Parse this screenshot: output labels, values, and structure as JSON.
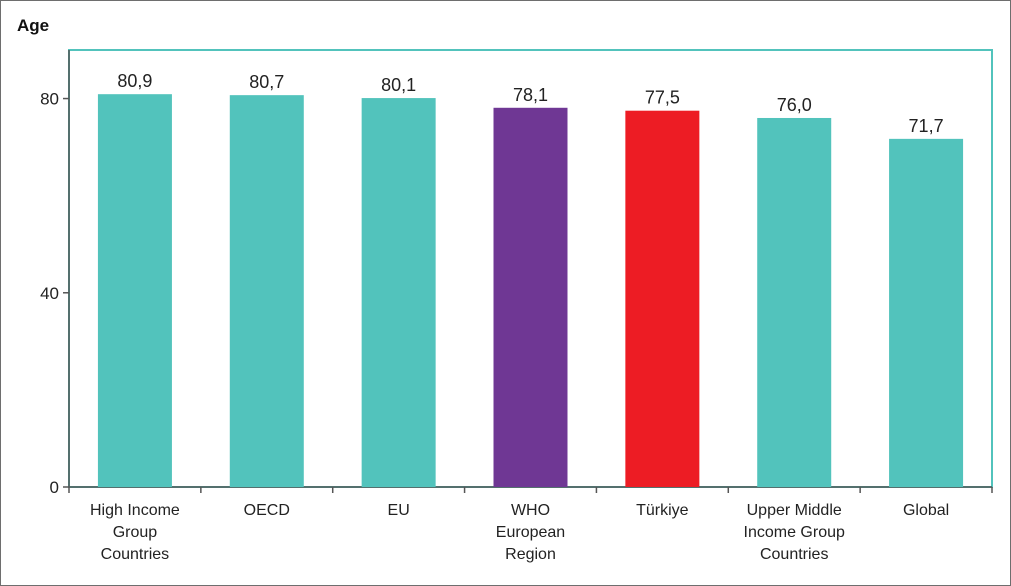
{
  "chart_data": {
    "type": "bar",
    "ylabel": "Age",
    "xlabel": "",
    "title": "",
    "ylim": [
      0,
      90
    ],
    "yticks": [
      0,
      40,
      80
    ],
    "grid": false,
    "legend": "none",
    "categories": [
      [
        "High Income",
        "Group",
        "Countries"
      ],
      [
        "OECD"
      ],
      [
        "EU"
      ],
      [
        "WHO",
        "European",
        "Region"
      ],
      [
        "Türkiye"
      ],
      [
        "Upper Middle",
        "Income Group",
        "Countries"
      ],
      [
        "Global"
      ]
    ],
    "values": [
      80.9,
      80.7,
      80.1,
      78.1,
      77.5,
      76.0,
      71.7
    ],
    "value_labels": [
      "80,9",
      "80,7",
      "80,1",
      "78,1",
      "77,5",
      "76,0",
      "71,7"
    ],
    "bar_colors": [
      "#52c3bc",
      "#52c3bc",
      "#52c3bc",
      "#6f3794",
      "#ed1c24",
      "#52c3bc",
      "#52c3bc"
    ],
    "plot_border_color": "#52c3bc",
    "axis_color": "#555555"
  }
}
